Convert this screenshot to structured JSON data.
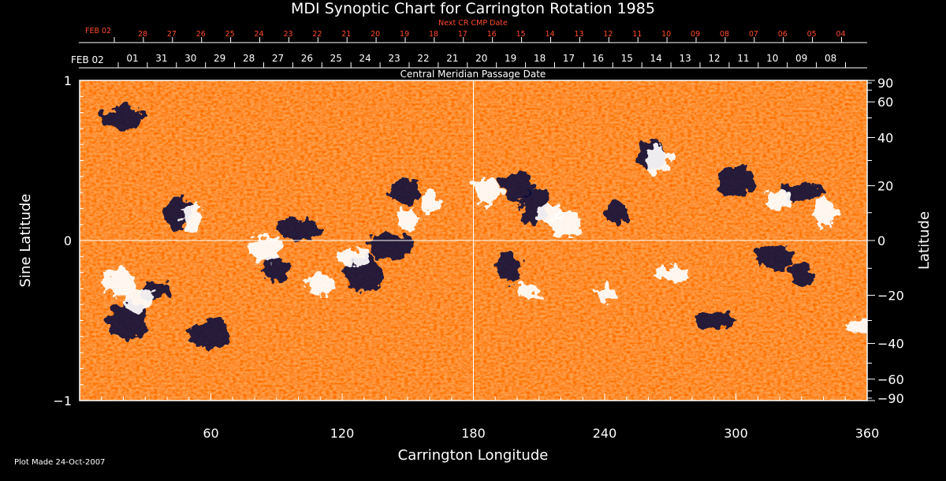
{
  "chart_data": {
    "type": "heatmap",
    "title": "MDI Synoptic Chart for Carrington Rotation 1985",
    "xlabel": "Carrington Longitude",
    "ylabel_left": "Sine Latitude",
    "ylabel_right": "Latitude",
    "xlim": [
      0,
      360
    ],
    "ylim": [
      -1,
      1
    ],
    "x_ticks": [
      60,
      120,
      180,
      240,
      300,
      360
    ],
    "y_ticks_left": [
      {
        "v": 1,
        "label": "1"
      },
      {
        "v": 0,
        "label": "0"
      },
      {
        "v": -1,
        "label": "−1"
      }
    ],
    "y_ticks_right": [
      {
        "lat": 90,
        "label": "90"
      },
      {
        "lat": 60,
        "label": "60"
      },
      {
        "lat": 40,
        "label": "40"
      },
      {
        "lat": 20,
        "label": "20"
      },
      {
        "lat": 0,
        "label": "0"
      },
      {
        "lat": -20,
        "label": "−20"
      },
      {
        "lat": -40,
        "label": "−40"
      },
      {
        "lat": -60,
        "label": "−60"
      },
      {
        "lat": -90,
        "label": "−90"
      }
    ],
    "cmp_axis_label": "Central Meridian Passage Date",
    "cmp_start": "FEB 02",
    "cmp_dates": [
      "01",
      "31",
      "30",
      "29",
      "28",
      "27",
      "26",
      "25",
      "24",
      "23",
      "22",
      "21",
      "20",
      "19",
      "18",
      "17",
      "16",
      "15",
      "14",
      "13",
      "12",
      "11",
      "10",
      "09",
      "08"
    ],
    "next_cr_label": "Next CR CMP Date",
    "next_start": "FEB 02",
    "next_dates": [
      "28",
      "27",
      "26",
      "25",
      "24",
      "23",
      "22",
      "21",
      "20",
      "19",
      "18",
      "17",
      "16",
      "15",
      "14",
      "13",
      "12",
      "11",
      "10",
      "09",
      "08",
      "07",
      "06",
      "05",
      "04"
    ],
    "grid": "crosshair at longitude 180 and latitude 0",
    "colors": {
      "background": "#000000",
      "field_base": "#ff6a00",
      "positive_polarity": "#ffffff",
      "negative_polarity": "#120a3a",
      "next_axis_text": "#ff4a2a"
    },
    "positive_regions": [
      {
        "lon": 18,
        "lat": -15
      },
      {
        "lon": 27,
        "lat": -22
      },
      {
        "lon": 52,
        "lat": 8
      },
      {
        "lon": 85,
        "lat": -3
      },
      {
        "lon": 110,
        "lat": -16
      },
      {
        "lon": 125,
        "lat": -6
      },
      {
        "lon": 150,
        "lat": 8
      },
      {
        "lon": 160,
        "lat": 14
      },
      {
        "lon": 186,
        "lat": 18
      },
      {
        "lon": 215,
        "lat": 10
      },
      {
        "lon": 222,
        "lat": 6
      },
      {
        "lon": 270,
        "lat": -12
      },
      {
        "lon": 320,
        "lat": 14
      },
      {
        "lon": 340,
        "lat": 10
      },
      {
        "lon": 356,
        "lat": -32
      },
      {
        "lon": 265,
        "lat": 30
      },
      {
        "lon": 205,
        "lat": -18
      },
      {
        "lon": 240,
        "lat": -20
      }
    ],
    "negative_regions": [
      {
        "lon": 22,
        "lat": -30
      },
      {
        "lon": 35,
        "lat": -18
      },
      {
        "lon": 45,
        "lat": 10
      },
      {
        "lon": 90,
        "lat": -10
      },
      {
        "lon": 100,
        "lat": 4
      },
      {
        "lon": 130,
        "lat": -12
      },
      {
        "lon": 142,
        "lat": -2
      },
      {
        "lon": 148,
        "lat": 18
      },
      {
        "lon": 200,
        "lat": 20
      },
      {
        "lon": 208,
        "lat": 12
      },
      {
        "lon": 196,
        "lat": -10
      },
      {
        "lon": 245,
        "lat": 10
      },
      {
        "lon": 262,
        "lat": 32
      },
      {
        "lon": 300,
        "lat": 22
      },
      {
        "lon": 318,
        "lat": -6
      },
      {
        "lon": 330,
        "lat": 18
      },
      {
        "lon": 330,
        "lat": -12
      },
      {
        "lon": 290,
        "lat": -30
      },
      {
        "lon": 60,
        "lat": -36
      },
      {
        "lon": 20,
        "lat": 50
      }
    ]
  },
  "footer": {
    "plot_made": "Plot Made 24-Oct-2007"
  }
}
